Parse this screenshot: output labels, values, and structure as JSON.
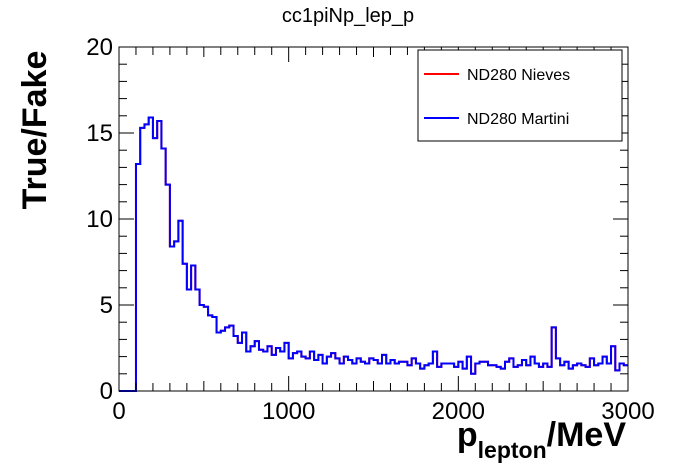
{
  "chart_data": {
    "type": "line",
    "title": "cc1piNp_lep_p",
    "ylabel": "True/Fake",
    "xlabel_main": "p",
    "xlabel_sub": "lepton",
    "xlabel_unit": "/MeV",
    "xlim": [
      0,
      3000
    ],
    "ylim": [
      0,
      20
    ],
    "x_ticks": [
      0,
      1000,
      2000,
      3000
    ],
    "y_ticks": [
      0,
      5,
      10,
      15,
      20
    ],
    "legend_position": "top-right",
    "grid": false,
    "bin_width": 25,
    "series": [
      {
        "name": "ND280 Nieves",
        "color": "#ff0000",
        "bin_edges_start": 0,
        "values": [
          0,
          0,
          0,
          0,
          13.2,
          15.3,
          15.5,
          15.9,
          14.7,
          15.7,
          14.1,
          12.0,
          8.4,
          8.7,
          9.9,
          7.4,
          5.9,
          7.3,
          5.9,
          5.0,
          4.9,
          4.4,
          4.3,
          3.4,
          3.5,
          3.7,
          3.8,
          3.2,
          2.8,
          3.4,
          2.3,
          2.6,
          2.9,
          2.4,
          2.3,
          2.6,
          2.1,
          2.5,
          2.3,
          2.8,
          1.9,
          2.2,
          2.3,
          2.0,
          1.9,
          2.3,
          1.8,
          2.1,
          1.6,
          2.0,
          2.2,
          1.9,
          1.6,
          2.0,
          1.8,
          1.6,
          1.9,
          1.7,
          1.6,
          1.9,
          1.8,
          1.6,
          2.1,
          1.6,
          1.8,
          1.6,
          1.7,
          1.7,
          1.5,
          1.9,
          1.6,
          1.3,
          1.5,
          1.6,
          2.3,
          1.4,
          1.6,
          1.6,
          1.6,
          1.4,
          1.7,
          1.3,
          2.0,
          1.0,
          1.6,
          1.7,
          1.7,
          1.5,
          1.5,
          1.4,
          1.3,
          1.7,
          1.9,
          1.4,
          1.5,
          1.8,
          1.5,
          2.0,
          1.6,
          1.4,
          1.6,
          1.4,
          3.7,
          1.9,
          1.5,
          1.7,
          1.3,
          1.5,
          1.6,
          1.5,
          1.4,
          1.9,
          1.5,
          1.6,
          2.0,
          1.6,
          2.6,
          1.2,
          1.6,
          1.5
        ]
      },
      {
        "name": "ND280 Martini",
        "color": "#0000ff",
        "bin_edges_start": 0,
        "values": [
          0,
          0,
          0,
          0,
          13.2,
          15.3,
          15.5,
          15.9,
          14.7,
          15.7,
          14.1,
          12.0,
          8.4,
          8.7,
          9.9,
          7.4,
          5.9,
          7.3,
          5.9,
          5.0,
          4.9,
          4.4,
          4.3,
          3.4,
          3.5,
          3.7,
          3.8,
          3.2,
          2.8,
          3.4,
          2.3,
          2.6,
          2.9,
          2.4,
          2.3,
          2.6,
          2.1,
          2.5,
          2.3,
          2.8,
          1.9,
          2.2,
          2.3,
          2.0,
          1.9,
          2.3,
          1.8,
          2.1,
          1.6,
          2.0,
          2.2,
          1.9,
          1.6,
          2.0,
          1.8,
          1.6,
          1.9,
          1.7,
          1.6,
          1.9,
          1.8,
          1.6,
          2.1,
          1.6,
          1.8,
          1.6,
          1.7,
          1.7,
          1.5,
          1.9,
          1.6,
          1.3,
          1.5,
          1.6,
          2.3,
          1.4,
          1.6,
          1.6,
          1.6,
          1.4,
          1.7,
          1.3,
          2.0,
          1.0,
          1.6,
          1.7,
          1.7,
          1.5,
          1.5,
          1.4,
          1.3,
          1.7,
          1.9,
          1.4,
          1.5,
          1.8,
          1.5,
          2.0,
          1.6,
          1.4,
          1.6,
          1.4,
          3.7,
          1.9,
          1.5,
          1.7,
          1.3,
          1.5,
          1.6,
          1.5,
          1.4,
          1.9,
          1.5,
          1.6,
          2.0,
          1.6,
          2.6,
          1.2,
          1.6,
          1.5
        ]
      }
    ]
  }
}
